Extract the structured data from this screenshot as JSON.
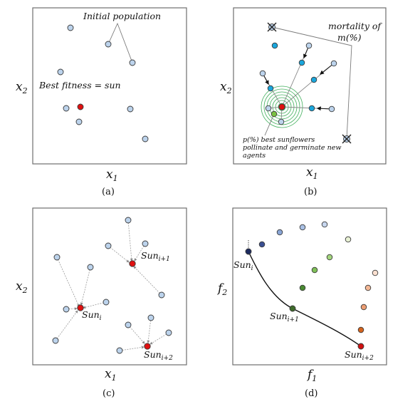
{
  "panels": {
    "a": {
      "caption": "(a)",
      "x_label": "x",
      "x_sub": "1",
      "y_label": "x",
      "y_sub": "2",
      "annotation_initial": "Initial population",
      "annotation_best": "Best fitness = sun"
    },
    "b": {
      "caption": "(b)",
      "x_label": "x",
      "x_sub": "1",
      "y_label": "x",
      "y_sub": "2",
      "annotation_mortality_1": "mortality of",
      "annotation_mortality_2": "m(%)",
      "annotation_pollinate_1": "p(%) best sunflowers",
      "annotation_pollinate_2": "pollinate and germinate new",
      "annotation_pollinate_3": "agents"
    },
    "c": {
      "caption": "(c)",
      "x_label": "x",
      "x_sub": "1",
      "y_label": "x",
      "y_sub": "2",
      "sun_label": "Sun",
      "sub_i": "i",
      "sub_i1": "i+1",
      "sub_i2": "i+2"
    },
    "d": {
      "caption": "(d)",
      "x_label": "f",
      "x_sub": "1",
      "y_label": "f",
      "y_sub": "2",
      "sun_label": "Sun",
      "sub_i": "i",
      "sub_i1": "i+1",
      "sub_i2": "i+2"
    }
  },
  "colors": {
    "agent": "#bcd3ec",
    "sun": "#e01010",
    "new_agent": "#1aa6dc",
    "green_agent": "#7bc142",
    "ring": "#3fae5a"
  }
}
